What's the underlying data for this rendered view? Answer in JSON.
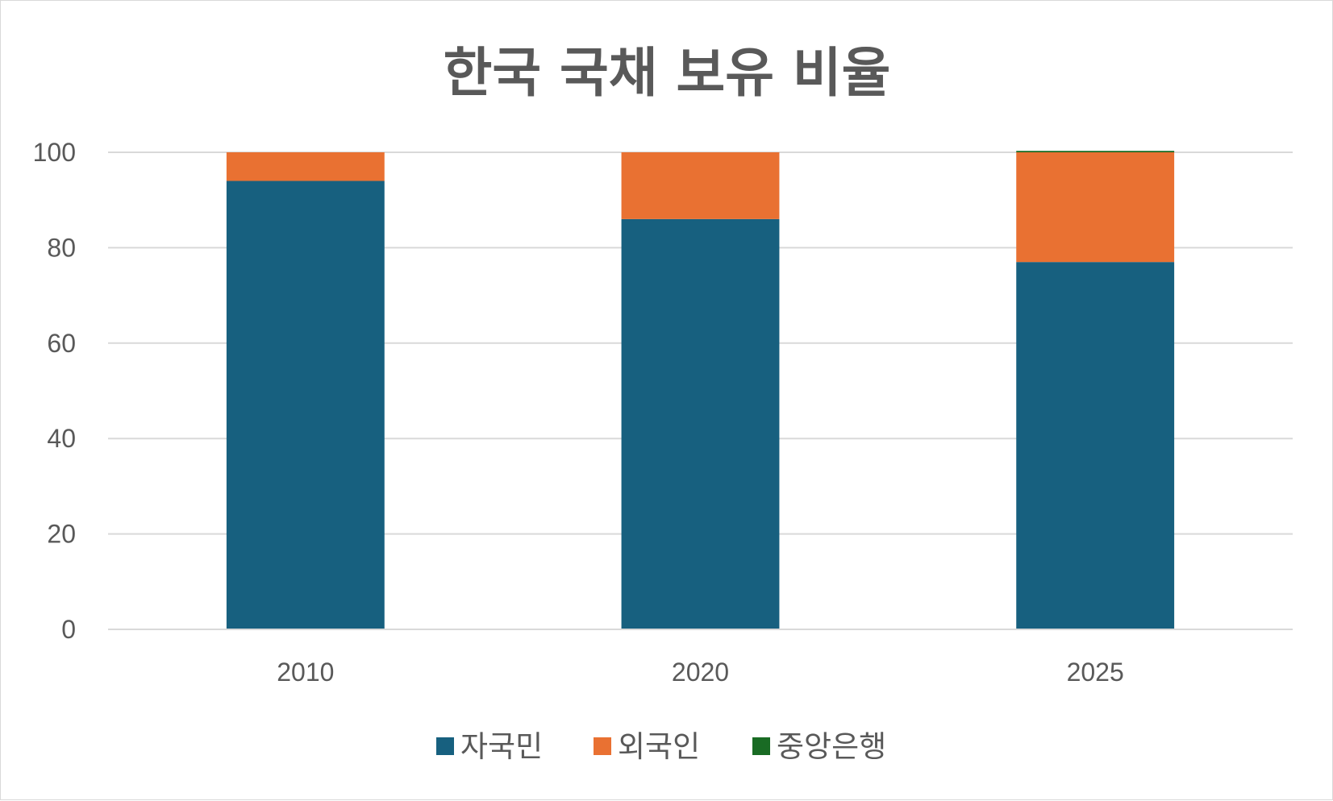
{
  "chart_data": {
    "type": "bar",
    "stacked": true,
    "title": "한국 국채 보유 비율",
    "xlabel": "",
    "ylabel": "",
    "categories": [
      "2010",
      "2020",
      "2025"
    ],
    "series": [
      {
        "name": "자국민",
        "color": "#17607F",
        "values": [
          94,
          86,
          77
        ]
      },
      {
        "name": "외국인",
        "color": "#E97132",
        "values": [
          6,
          14,
          23
        ]
      },
      {
        "name": "중앙은행",
        "color": "#196B24",
        "values": [
          0,
          0,
          0.3
        ]
      }
    ],
    "ylim": [
      0,
      100
    ],
    "yticks": [
      0,
      20,
      40,
      60,
      80,
      100
    ],
    "grid": true,
    "legend": "bottom"
  }
}
